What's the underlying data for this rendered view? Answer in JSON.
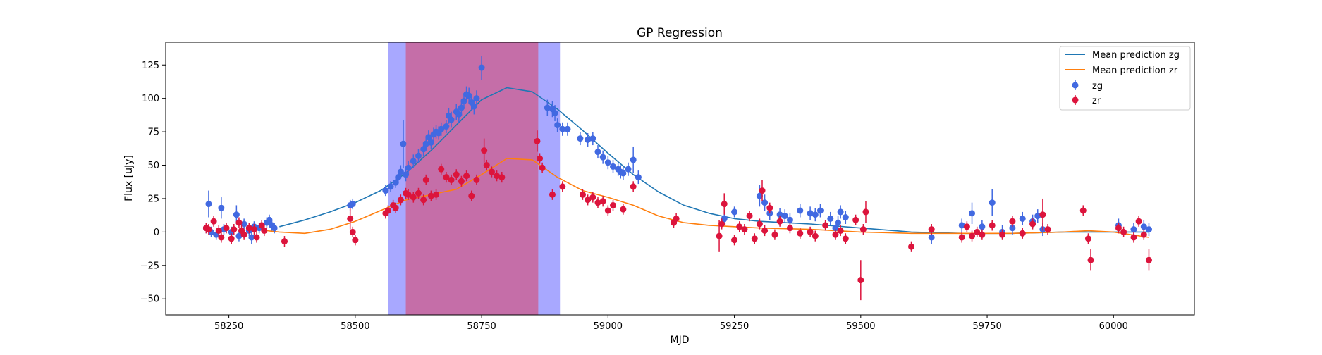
{
  "chart_data": {
    "type": "scatter",
    "title": "GP Regression",
    "xlabel": "MJD",
    "ylabel": "Flux [uJy]",
    "xlim": [
      58125,
      60160
    ],
    "ylim": [
      -62,
      142
    ],
    "xticks": [
      58250,
      58500,
      58750,
      59000,
      59250,
      59500,
      59750,
      60000
    ],
    "yticks": [
      -50,
      -25,
      0,
      25,
      50,
      75,
      100,
      125
    ],
    "grid": false,
    "legend_position": "upper right",
    "spans": [
      {
        "name": "zg",
        "x0": 58565,
        "x1": 58905,
        "color": "#0000ff",
        "alpha": 0.34
      },
      {
        "name": "zr",
        "x0": 58600,
        "x1": 58862,
        "color": "#ff0000",
        "alpha": 0.34
      }
    ],
    "lines": [
      {
        "name": "Mean prediction zg",
        "color": "#1f77b4",
        "x": [
          58350,
          58400,
          58450,
          58500,
          58550,
          58600,
          58650,
          58700,
          58750,
          58800,
          58850,
          58900,
          58950,
          59000,
          59050,
          59100,
          59150,
          59200,
          59250,
          59300,
          59400,
          59500,
          59600,
          59700,
          59800,
          59900,
          60000,
          60070
        ],
        "y": [
          4,
          9,
          15,
          22,
          31,
          44,
          61,
          80,
          99,
          108,
          105,
          92,
          76,
          59,
          43,
          30,
          20,
          14,
          10,
          8,
          6,
          3,
          0,
          -1,
          -1,
          0,
          0,
          0
        ]
      },
      {
        "name": "Mean prediction zr",
        "color": "#ff7f0e",
        "x": [
          58300,
          58350,
          58400,
          58450,
          58500,
          58550,
          58600,
          58650,
          58700,
          58750,
          58800,
          58850,
          58900,
          58950,
          59000,
          59050,
          59100,
          59150,
          59200,
          59250,
          59300,
          59400,
          59500,
          59600,
          59700,
          59800,
          59900,
          59950,
          60000,
          60070
        ],
        "y": [
          2,
          0,
          -1,
          2,
          8,
          16,
          24,
          28,
          32,
          43,
          55,
          54,
          41,
          31,
          26,
          20,
          12,
          7,
          5,
          4,
          3,
          2,
          0,
          -1,
          -1,
          -1,
          0,
          1,
          0,
          -4
        ]
      }
    ],
    "series": [
      {
        "name": "zg",
        "color": "#4169e1",
        "x": [
          58205,
          58210,
          58215,
          58225,
          58235,
          58240,
          58255,
          58265,
          58270,
          58280,
          58290,
          58295,
          58300,
          58310,
          58325,
          58330,
          58335,
          58340,
          58490,
          58495,
          58560,
          58570,
          58580,
          58585,
          58590,
          58595,
          58600,
          58605,
          58615,
          58625,
          58635,
          58640,
          58645,
          58650,
          58655,
          58660,
          58665,
          58670,
          58680,
          58685,
          58690,
          58700,
          58705,
          58710,
          58715,
          58720,
          58725,
          58730,
          58735,
          58740,
          58750,
          58880,
          58890,
          58895,
          58900,
          58910,
          58920,
          58945,
          58960,
          58970,
          58980,
          58990,
          59000,
          59010,
          59020,
          59025,
          59030,
          59040,
          59050,
          59060,
          59230,
          59250,
          59300,
          59310,
          59320,
          59340,
          59350,
          59360,
          59380,
          59400,
          59410,
          59420,
          59440,
          59450,
          59455,
          59460,
          59470,
          59640,
          59700,
          59720,
          59740,
          59760,
          59780,
          59800,
          59820,
          59840,
          59850,
          59860,
          60010,
          60040,
          60060,
          60070
        ],
        "y": [
          3,
          21,
          0,
          -2,
          18,
          2,
          0,
          13,
          -3,
          6,
          1,
          -4,
          4,
          3,
          7,
          9,
          5,
          3,
          20,
          21,
          31,
          34,
          37,
          41,
          45,
          66,
          43,
          48,
          53,
          57,
          62,
          66,
          71,
          67,
          73,
          75,
          74,
          77,
          79,
          87,
          84,
          90,
          88,
          93,
          98,
          103,
          102,
          97,
          94,
          100,
          123,
          93,
          92,
          89,
          80,
          77,
          77,
          70,
          69,
          70,
          60,
          56,
          52,
          49,
          47,
          45,
          44,
          47,
          54,
          41,
          10,
          15,
          27,
          22,
          14,
          13,
          12,
          9,
          16,
          14,
          13,
          16,
          10,
          3,
          7,
          15,
          11,
          -4,
          5,
          14,
          4,
          22,
          0,
          3,
          10,
          8,
          12,
          2,
          5,
          2,
          4,
          2
        ],
        "err": [
          4,
          10,
          4,
          4,
          8,
          4,
          4,
          7,
          4,
          4,
          4,
          5,
          4,
          4,
          4,
          4,
          4,
          4,
          4,
          4,
          4,
          4,
          4,
          4,
          5,
          18,
          5,
          5,
          5,
          5,
          5,
          5,
          5,
          5,
          5,
          5,
          5,
          5,
          5,
          6,
          6,
          6,
          6,
          6,
          6,
          6,
          6,
          6,
          6,
          6,
          9,
          6,
          6,
          6,
          5,
          5,
          5,
          5,
          5,
          5,
          5,
          5,
          5,
          5,
          5,
          5,
          5,
          5,
          10,
          5,
          5,
          4,
          8,
          6,
          5,
          5,
          5,
          5,
          5,
          5,
          5,
          5,
          5,
          5,
          5,
          5,
          5,
          5,
          5,
          8,
          5,
          10,
          5,
          5,
          5,
          5,
          5,
          5,
          5,
          5,
          5,
          5
        ]
      },
      {
        "name": "zr",
        "color": "#dc143c",
        "x": [
          58205,
          58210,
          58220,
          58230,
          58235,
          58245,
          58255,
          58260,
          58270,
          58275,
          58280,
          58290,
          58300,
          58305,
          58315,
          58320,
          58360,
          58490,
          58495,
          58500,
          58560,
          58565,
          58575,
          58580,
          58590,
          58600,
          58605,
          58615,
          58625,
          58635,
          58640,
          58650,
          58660,
          58670,
          58680,
          58690,
          58700,
          58710,
          58720,
          58730,
          58740,
          58755,
          58760,
          58770,
          58780,
          58790,
          58860,
          58865,
          58870,
          58890,
          58910,
          58950,
          58960,
          58970,
          58980,
          58990,
          59000,
          59010,
          59030,
          59050,
          59130,
          59135,
          59220,
          59225,
          59230,
          59250,
          59260,
          59270,
          59280,
          59290,
          59300,
          59305,
          59310,
          59320,
          59330,
          59340,
          59360,
          59380,
          59400,
          59410,
          59430,
          59450,
          59460,
          59470,
          59490,
          59500,
          59505,
          59510,
          59600,
          59640,
          59700,
          59710,
          59720,
          59730,
          59740,
          59760,
          59780,
          59800,
          59820,
          59840,
          59860,
          59870,
          59940,
          59950,
          59955,
          60010,
          60020,
          60040,
          60050,
          60060,
          60070
        ],
        "y": [
          3,
          2,
          8,
          1,
          -4,
          3,
          -5,
          2,
          7,
          1,
          -2,
          3,
          2,
          -4,
          5,
          1,
          -7,
          10,
          0,
          -6,
          14,
          16,
          20,
          18,
          24,
          29,
          28,
          26,
          29,
          24,
          39,
          27,
          28,
          47,
          41,
          39,
          43,
          38,
          42,
          27,
          39,
          61,
          50,
          45,
          42,
          41,
          68,
          55,
          48,
          28,
          34,
          28,
          24,
          26,
          22,
          23,
          16,
          20,
          17,
          34,
          7,
          10,
          -3,
          6,
          21,
          -6,
          4,
          2,
          12,
          -5,
          6,
          31,
          1,
          18,
          -2,
          8,
          3,
          -1,
          0,
          -3,
          5,
          -2,
          1,
          -5,
          9,
          -36,
          2,
          15,
          -11,
          2,
          -4,
          4,
          -3,
          0,
          -2,
          5,
          -2,
          8,
          -1,
          6,
          13,
          2,
          16,
          -5,
          -21,
          3,
          0,
          -4,
          8,
          -2,
          -21
        ],
        "err": [
          4,
          4,
          4,
          4,
          4,
          4,
          4,
          4,
          4,
          4,
          4,
          4,
          4,
          4,
          4,
          4,
          4,
          8,
          4,
          4,
          4,
          4,
          4,
          4,
          4,
          4,
          4,
          4,
          4,
          4,
          4,
          4,
          4,
          4,
          4,
          4,
          4,
          4,
          4,
          4,
          4,
          9,
          4,
          4,
          4,
          4,
          8,
          4,
          4,
          4,
          4,
          4,
          4,
          4,
          4,
          4,
          4,
          4,
          4,
          4,
          4,
          4,
          12,
          4,
          8,
          4,
          4,
          4,
          4,
          4,
          4,
          8,
          4,
          4,
          4,
          4,
          4,
          4,
          4,
          4,
          4,
          4,
          4,
          4,
          4,
          15,
          4,
          8,
          4,
          4,
          4,
          4,
          4,
          4,
          4,
          4,
          4,
          4,
          4,
          4,
          12,
          4,
          4,
          4,
          8,
          4,
          4,
          4,
          4,
          4,
          8
        ]
      }
    ]
  }
}
